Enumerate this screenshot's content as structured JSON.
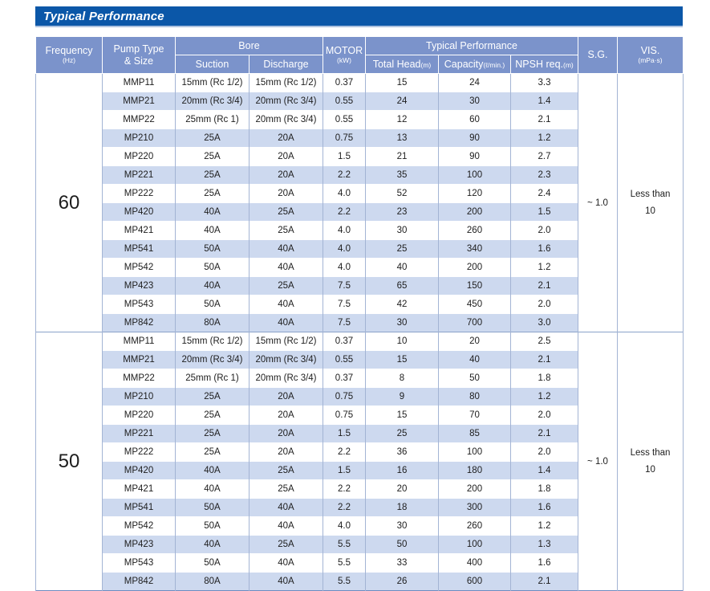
{
  "page": {
    "title": "Typical Performance"
  },
  "colors": {
    "title_bar": "#0b57a8",
    "header_bg": "#7b93cb",
    "stripe_row": "#cdd9ef",
    "grid_border": "#a3b4d4",
    "header_text": "#ffffff"
  },
  "table": {
    "headers": {
      "frequency": "Frequency",
      "frequency_unit": "(Hz)",
      "pump_line1": "Pump Type",
      "pump_line2": "& Size",
      "bore": "Bore",
      "suction": "Suction",
      "discharge": "Discharge",
      "motor": "MOTOR",
      "motor_unit": "(kW)",
      "performance": "Typical Performance",
      "total_head": "Total Head",
      "total_head_unit": "(m)",
      "capacity": "Capacity",
      "capacity_unit": "(ℓ/min.)",
      "npsh": "NPSH req.",
      "npsh_unit": "(m)",
      "sg": "S.G.",
      "vis": "VIS.",
      "vis_unit": "(mPa·s)"
    },
    "sections": [
      {
        "frequency": "60",
        "sg": "~ 1.0",
        "vis_line1": "Less than",
        "vis_line2": "10",
        "rows": [
          {
            "model": "MMP11",
            "suction": "15mm (Rc 1/2)",
            "discharge": "15mm (Rc 1/2)",
            "motor": "0.37",
            "head": "15",
            "capacity": "24",
            "npsh": "3.3"
          },
          {
            "model": "MMP21",
            "suction": "20mm (Rc 3/4)",
            "discharge": "20mm (Rc 3/4)",
            "motor": "0.55",
            "head": "24",
            "capacity": "30",
            "npsh": "1.4"
          },
          {
            "model": "MMP22",
            "suction": "25mm (Rc 1)",
            "discharge": "20mm (Rc 3/4)",
            "motor": "0.55",
            "head": "12",
            "capacity": "60",
            "npsh": "2.1"
          },
          {
            "model": "MP210",
            "suction": "25A",
            "discharge": "20A",
            "motor": "0.75",
            "head": "13",
            "capacity": "90",
            "npsh": "1.2"
          },
          {
            "model": "MP220",
            "suction": "25A",
            "discharge": "20A",
            "motor": "1.5",
            "head": "21",
            "capacity": "90",
            "npsh": "2.7"
          },
          {
            "model": "MP221",
            "suction": "25A",
            "discharge": "20A",
            "motor": "2.2",
            "head": "35",
            "capacity": "100",
            "npsh": "2.3"
          },
          {
            "model": "MP222",
            "suction": "25A",
            "discharge": "20A",
            "motor": "4.0",
            "head": "52",
            "capacity": "120",
            "npsh": "2.4"
          },
          {
            "model": "MP420",
            "suction": "40A",
            "discharge": "25A",
            "motor": "2.2",
            "head": "23",
            "capacity": "200",
            "npsh": "1.5"
          },
          {
            "model": "MP421",
            "suction": "40A",
            "discharge": "25A",
            "motor": "4.0",
            "head": "30",
            "capacity": "260",
            "npsh": "2.0"
          },
          {
            "model": "MP541",
            "suction": "50A",
            "discharge": "40A",
            "motor": "4.0",
            "head": "25",
            "capacity": "340",
            "npsh": "1.6"
          },
          {
            "model": "MP542",
            "suction": "50A",
            "discharge": "40A",
            "motor": "4.0",
            "head": "40",
            "capacity": "200",
            "npsh": "1.2"
          },
          {
            "model": "MP423",
            "suction": "40A",
            "discharge": "25A",
            "motor": "7.5",
            "head": "65",
            "capacity": "150",
            "npsh": "2.1"
          },
          {
            "model": "MP543",
            "suction": "50A",
            "discharge": "40A",
            "motor": "7.5",
            "head": "42",
            "capacity": "450",
            "npsh": "2.0"
          },
          {
            "model": "MP842",
            "suction": "80A",
            "discharge": "40A",
            "motor": "7.5",
            "head": "30",
            "capacity": "700",
            "npsh": "3.0"
          }
        ]
      },
      {
        "frequency": "50",
        "sg": "~ 1.0",
        "vis_line1": "Less than",
        "vis_line2": "10",
        "rows": [
          {
            "model": "MMP11",
            "suction": "15mm (Rc 1/2)",
            "discharge": "15mm (Rc 1/2)",
            "motor": "0.37",
            "head": "10",
            "capacity": "20",
            "npsh": "2.5"
          },
          {
            "model": "MMP21",
            "suction": "20mm (Rc 3/4)",
            "discharge": "20mm (Rc 3/4)",
            "motor": "0.55",
            "head": "15",
            "capacity": "40",
            "npsh": "2.1"
          },
          {
            "model": "MMP22",
            "suction": "25mm (Rc 1)",
            "discharge": "20mm (Rc 3/4)",
            "motor": "0.37",
            "head": "8",
            "capacity": "50",
            "npsh": "1.8"
          },
          {
            "model": "MP210",
            "suction": "25A",
            "discharge": "20A",
            "motor": "0.75",
            "head": "9",
            "capacity": "80",
            "npsh": "1.2"
          },
          {
            "model": "MP220",
            "suction": "25A",
            "discharge": "20A",
            "motor": "0.75",
            "head": "15",
            "capacity": "70",
            "npsh": "2.0"
          },
          {
            "model": "MP221",
            "suction": "25A",
            "discharge": "20A",
            "motor": "1.5",
            "head": "25",
            "capacity": "85",
            "npsh": "2.1"
          },
          {
            "model": "MP222",
            "suction": "25A",
            "discharge": "20A",
            "motor": "2.2",
            "head": "36",
            "capacity": "100",
            "npsh": "2.0"
          },
          {
            "model": "MP420",
            "suction": "40A",
            "discharge": "25A",
            "motor": "1.5",
            "head": "16",
            "capacity": "180",
            "npsh": "1.4"
          },
          {
            "model": "MP421",
            "suction": "40A",
            "discharge": "25A",
            "motor": "2.2",
            "head": "20",
            "capacity": "200",
            "npsh": "1.8"
          },
          {
            "model": "MP541",
            "suction": "50A",
            "discharge": "40A",
            "motor": "2.2",
            "head": "18",
            "capacity": "300",
            "npsh": "1.6"
          },
          {
            "model": "MP542",
            "suction": "50A",
            "discharge": "40A",
            "motor": "4.0",
            "head": "30",
            "capacity": "260",
            "npsh": "1.2"
          },
          {
            "model": "MP423",
            "suction": "40A",
            "discharge": "25A",
            "motor": "5.5",
            "head": "50",
            "capacity": "100",
            "npsh": "1.3"
          },
          {
            "model": "MP543",
            "suction": "50A",
            "discharge": "40A",
            "motor": "5.5",
            "head": "33",
            "capacity": "400",
            "npsh": "1.6"
          },
          {
            "model": "MP842",
            "suction": "80A",
            "discharge": "40A",
            "motor": "5.5",
            "head": "26",
            "capacity": "600",
            "npsh": "2.1"
          }
        ]
      }
    ]
  }
}
